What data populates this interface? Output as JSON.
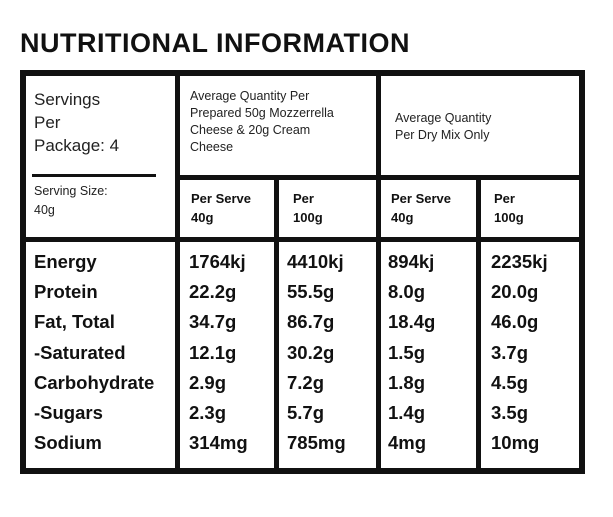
{
  "title": "NUTRITIONAL INFORMATION",
  "servings": {
    "line1": "Servings",
    "line2": "Per",
    "line3": "Package: 4",
    "size_label": "Serving Size:",
    "size_value": "40g"
  },
  "groups": [
    {
      "lines": [
        "Average Quantity Per",
        "Prepared 50g Mozzerrella",
        "Cheese & 20g Cream",
        "Cheese"
      ]
    },
    {
      "lines": [
        "Average Quantity",
        "Per Dry Mix Only"
      ]
    }
  ],
  "columns": [
    {
      "line1": "Per Serve",
      "line2": "40g"
    },
    {
      "line1": "Per",
      "line2": "100g"
    },
    {
      "line1": "Per Serve",
      "line2": "40g"
    },
    {
      "line1": "Per",
      "line2": "100g"
    }
  ],
  "rows": [
    {
      "label": "Energy",
      "values": [
        "1764kj",
        "4410kj",
        "894kj",
        "2235kj"
      ]
    },
    {
      "label": "Protein",
      "values": [
        "22.2g",
        "55.5g",
        "8.0g",
        "20.0g"
      ]
    },
    {
      "label": "Fat, Total",
      "values": [
        "34.7g",
        "86.7g",
        "18.4g",
        "46.0g"
      ]
    },
    {
      "label": "-Saturated",
      "values": [
        "12.1g",
        "30.2g",
        "1.5g",
        "3.7g"
      ]
    },
    {
      "label": "Carbohydrate",
      "values": [
        "2.9g",
        "7.2g",
        "1.8g",
        "4.5g"
      ]
    },
    {
      "label": "-Sugars",
      "values": [
        "2.3g",
        "5.7g",
        "1.4g",
        "3.5g"
      ]
    },
    {
      "label": "Sodium",
      "values": [
        "314mg",
        "785mg",
        "4mg",
        "10mg"
      ]
    }
  ]
}
